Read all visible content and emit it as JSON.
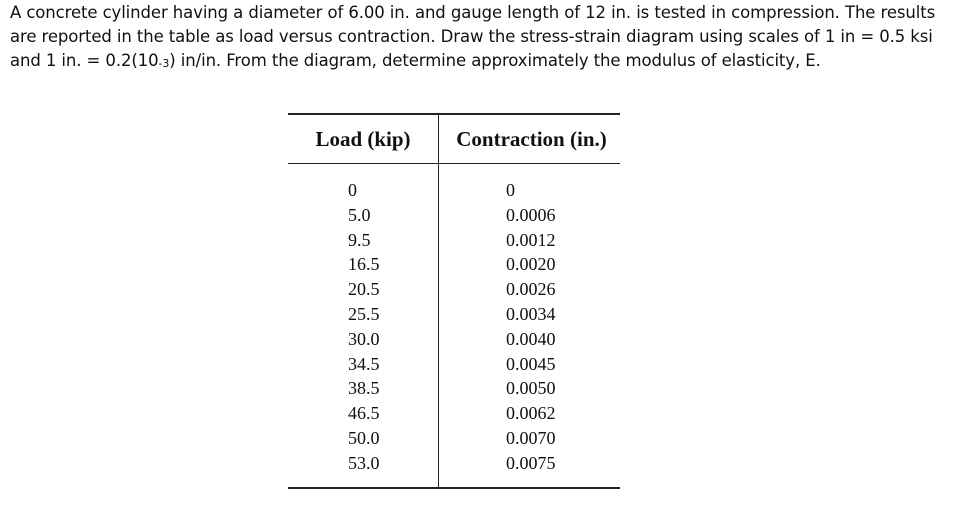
{
  "problem": {
    "text_before_sub": "A concrete cylinder having a diameter of 6.00 in. and gauge length of 12 in. is tested in compression. The results are reported in the table as load versus contraction. Draw the stress-strain diagram using scales of 1 in = 0.5 ksi and 1 in. = 0.2(10",
    "subscript": "-3",
    "text_after_sub": ") in/in. From the diagram, determine approximately the modulus of elasticity, E."
  },
  "table": {
    "headers": {
      "load": "Load (kip)",
      "contraction": "Contraction (in.)"
    },
    "rows": [
      {
        "load": "0",
        "contraction": "0"
      },
      {
        "load": "5.0",
        "contraction": "0.0006"
      },
      {
        "load": "9.5",
        "contraction": "0.0012"
      },
      {
        "load": "16.5",
        "contraction": "0.0020"
      },
      {
        "load": "20.5",
        "contraction": "0.0026"
      },
      {
        "load": "25.5",
        "contraction": "0.0034"
      },
      {
        "load": "30.0",
        "contraction": "0.0040"
      },
      {
        "load": "34.5",
        "contraction": "0.0045"
      },
      {
        "load": "38.5",
        "contraction": "0.0050"
      },
      {
        "load": "46.5",
        "contraction": "0.0062"
      },
      {
        "load": "50.0",
        "contraction": "0.0070"
      },
      {
        "load": "53.0",
        "contraction": "0.0075"
      }
    ]
  }
}
